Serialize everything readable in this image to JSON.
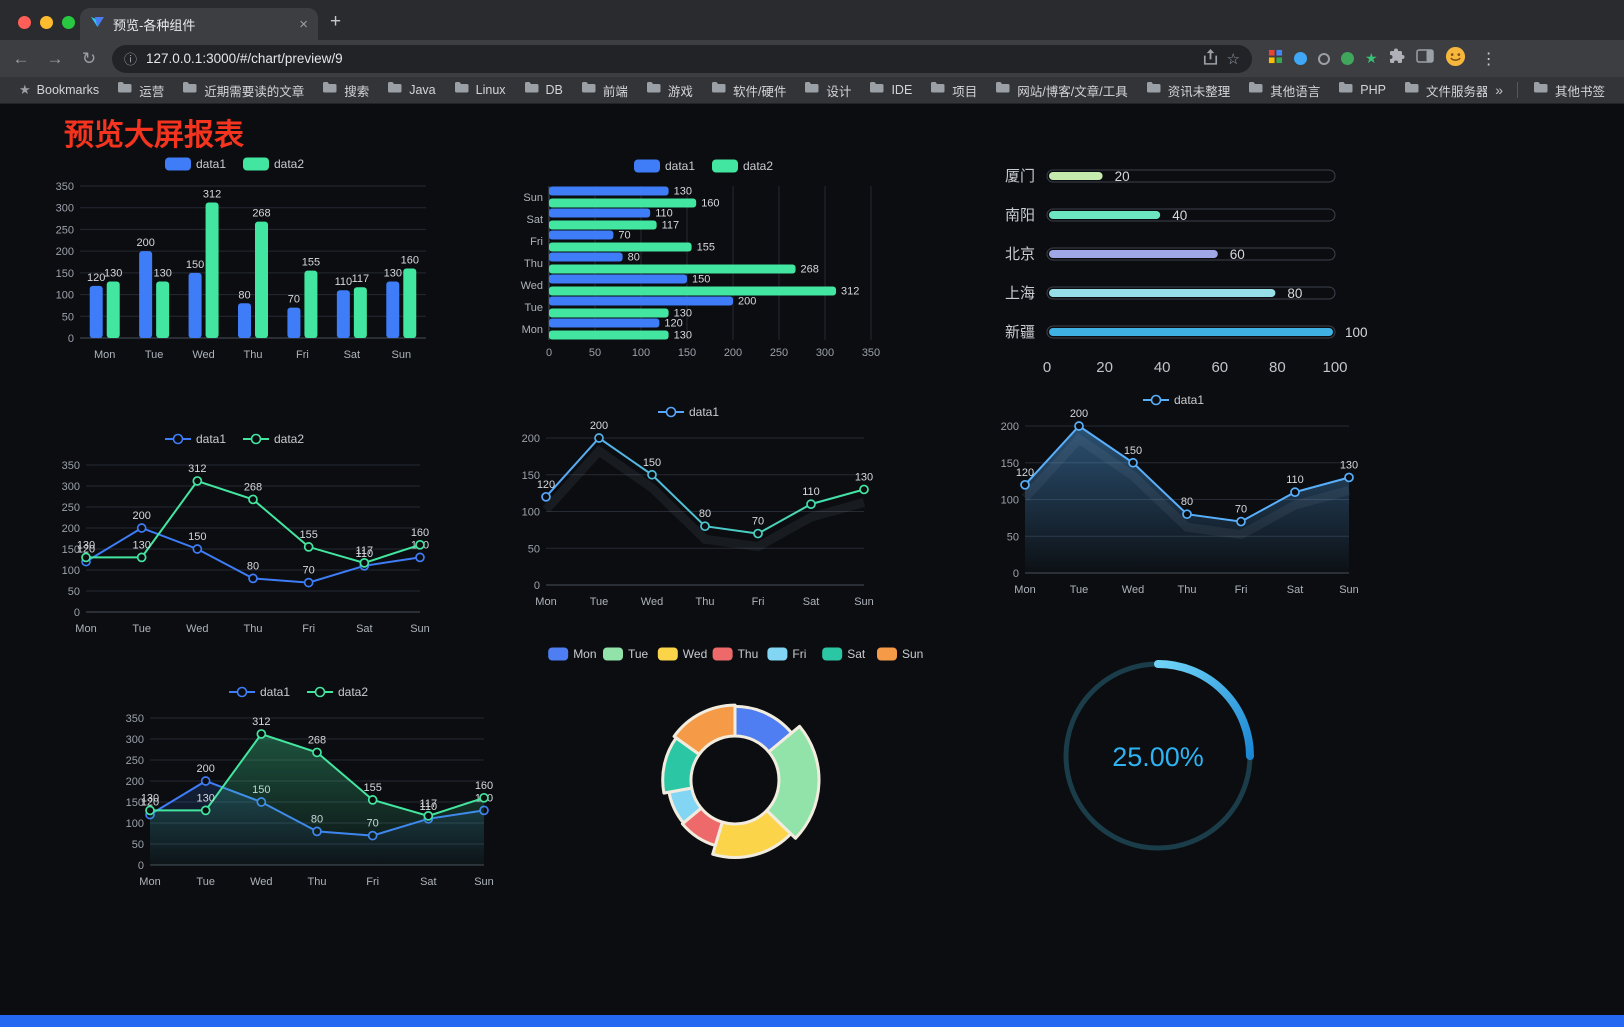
{
  "browser": {
    "tab_title": "预览-各种组件",
    "url": "127.0.0.1:3000/#/chart/preview/9",
    "bookmarks_label": "Bookmarks",
    "bookmarks": [
      "运营",
      "近期需要读的文章",
      "搜索",
      "Java",
      "Linux",
      "DB",
      "前端",
      "游戏",
      "软件/硬件",
      "设计",
      "IDE",
      "项目",
      "网站/博客/文章/工具",
      "资讯未整理",
      "其他语言",
      "PHP",
      "文件服务器"
    ],
    "overflow_chevron": "»",
    "other_bookmarks": "其他书签",
    "traffic_lights": {
      "close": "#ff5f57",
      "minimize": "#febc2e",
      "zoom": "#28c840"
    }
  },
  "page": {
    "title": "预览大屏报表"
  },
  "chart_data": [
    {
      "id": "grouped-bar",
      "type": "bar",
      "categories": [
        "Mon",
        "Tue",
        "Wed",
        "Thu",
        "Fri",
        "Sat",
        "Sun"
      ],
      "series": [
        {
          "name": "data1",
          "color": "#3e7df7",
          "values": [
            120,
            200,
            150,
            80,
            70,
            110,
            130
          ]
        },
        {
          "name": "data2",
          "color": "#43e6a0",
          "values": [
            130,
            130,
            312,
            268,
            155,
            117,
            160
          ]
        }
      ],
      "ylim": [
        0,
        350
      ],
      "ytick_step": 50,
      "legend_position": "top",
      "grid": true
    },
    {
      "id": "grouped-horizontal-bar",
      "type": "hbar",
      "categories": [
        "Mon",
        "Tue",
        "Wed",
        "Thu",
        "Fri",
        "Sat",
        "Sun"
      ],
      "series": [
        {
          "name": "data1",
          "color": "#3e7df7",
          "values": [
            120,
            200,
            150,
            80,
            70,
            110,
            130
          ]
        },
        {
          "name": "data2",
          "color": "#43e6a0",
          "values": [
            130,
            130,
            312,
            268,
            155,
            117,
            160
          ]
        }
      ],
      "xlim": [
        0,
        350
      ],
      "xtick_step": 50,
      "legend_position": "top",
      "grid": true
    },
    {
      "id": "city-progress",
      "type": "progress",
      "max": 100,
      "axis_ticks": [
        0,
        20,
        40,
        60,
        80,
        100
      ],
      "items": [
        {
          "label": "厦门",
          "value": 20,
          "color": "#c4ebad"
        },
        {
          "label": "南阳",
          "value": 40,
          "color": "#6be6c1"
        },
        {
          "label": "北京",
          "value": 60,
          "color": "#a0a7e6"
        },
        {
          "label": "上海",
          "value": 80,
          "color": "#96dee8"
        },
        {
          "label": "新疆",
          "value": 100,
          "color": "#3fb1e3"
        }
      ]
    },
    {
      "id": "two-series-line",
      "type": "line",
      "categories": [
        "Mon",
        "Tue",
        "Wed",
        "Thu",
        "Fri",
        "Sat",
        "Sun"
      ],
      "series": [
        {
          "name": "data1",
          "color": "#3e7df7",
          "values": [
            120,
            200,
            150,
            80,
            70,
            110,
            130
          ]
        },
        {
          "name": "data2",
          "color": "#43e6a0",
          "values": [
            130,
            130,
            312,
            268,
            155,
            117,
            160
          ]
        }
      ],
      "ylim": [
        0,
        350
      ],
      "ytick_step": 50,
      "legend_position": "top"
    },
    {
      "id": "gradient-line",
      "type": "line",
      "categories": [
        "Mon",
        "Tue",
        "Wed",
        "Thu",
        "Fri",
        "Sat",
        "Sun"
      ],
      "series": [
        {
          "name": "data1",
          "gradient": [
            "#58a6fb",
            "#43e6a0"
          ],
          "values": [
            120,
            200,
            150,
            80,
            70,
            110,
            130
          ]
        }
      ],
      "ylim": [
        0,
        200
      ],
      "ytick_step": 50,
      "legend_position": "top"
    },
    {
      "id": "area-line",
      "type": "line",
      "categories": [
        "Mon",
        "Tue",
        "Wed",
        "Thu",
        "Fri",
        "Sat",
        "Sun"
      ],
      "series": [
        {
          "name": "data1",
          "color": "#58b0fc",
          "area": true,
          "values": [
            120,
            200,
            150,
            80,
            70,
            110,
            130
          ]
        }
      ],
      "ylim": [
        0,
        200
      ],
      "ytick_step": 50,
      "legend_position": "top"
    },
    {
      "id": "two-series-area-line",
      "type": "line",
      "categories": [
        "Mon",
        "Tue",
        "Wed",
        "Thu",
        "Fri",
        "Sat",
        "Sun"
      ],
      "series": [
        {
          "name": "data1",
          "color": "#3e7df7",
          "area": true,
          "values": [
            120,
            200,
            150,
            80,
            70,
            110,
            130
          ]
        },
        {
          "name": "data2",
          "color": "#43e6a0",
          "area": true,
          "values": [
            130,
            130,
            312,
            268,
            155,
            117,
            160
          ]
        }
      ],
      "ylim": [
        0,
        350
      ],
      "ytick_step": 50,
      "legend_position": "top"
    },
    {
      "id": "rose-pie",
      "type": "donut",
      "items": [
        {
          "label": "Mon",
          "value": 120,
          "color": "#4f7ef2"
        },
        {
          "label": "Tue",
          "value": 200,
          "color": "#91e3a9"
        },
        {
          "label": "Wed",
          "value": 150,
          "color": "#fbd44a"
        },
        {
          "label": "Thu",
          "value": 80,
          "color": "#ee6a6a"
        },
        {
          "label": "Fri",
          "value": 70,
          "color": "#82d6f4"
        },
        {
          "label": "Sat",
          "value": 110,
          "color": "#2bc7a4"
        },
        {
          "label": "Sun",
          "value": 130,
          "color": "#f59b47"
        }
      ],
      "legend_position": "top"
    },
    {
      "id": "percent-gauge",
      "type": "gauge",
      "value": 25,
      "label": "25.00%",
      "color": "#2eb2f2",
      "track_color": "#1b3d4a",
      "gradient": [
        "#6fd3f7",
        "#1b87d4"
      ]
    }
  ]
}
